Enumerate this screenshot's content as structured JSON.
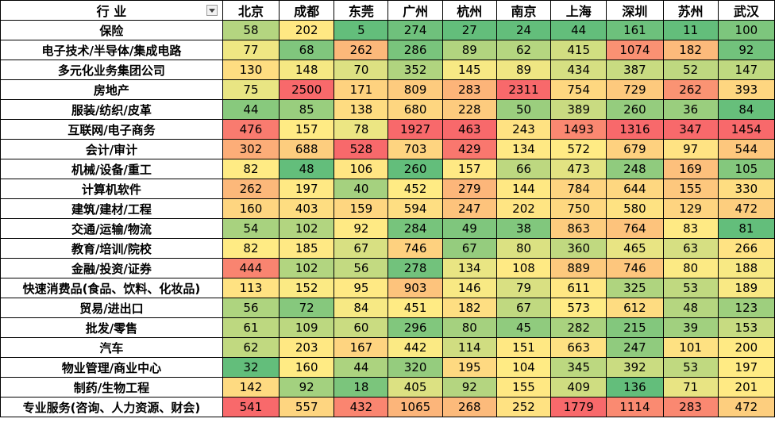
{
  "header": {
    "industry_label": "行  业",
    "filter_icon": "dropdown-arrow-icon",
    "cities": [
      "北京",
      "成都",
      "东莞",
      "广州",
      "杭州",
      "南京",
      "上海",
      "深圳",
      "苏州",
      "武汉"
    ]
  },
  "rows": [
    {
      "industry": "保险",
      "values": [
        58,
        202,
        5,
        274,
        27,
        24,
        44,
        161,
        11,
        100
      ]
    },
    {
      "industry": "电子技术/半导体/集成电路",
      "values": [
        77,
        68,
        262,
        286,
        89,
        62,
        415,
        1074,
        182,
        92
      ]
    },
    {
      "industry": "多元化业务集团公司",
      "values": [
        130,
        148,
        70,
        352,
        145,
        89,
        434,
        387,
        52,
        147
      ]
    },
    {
      "industry": "房地产",
      "values": [
        75,
        2500,
        171,
        809,
        283,
        2311,
        754,
        729,
        262,
        393
      ]
    },
    {
      "industry": "服装/纺织/皮革",
      "values": [
        44,
        85,
        138,
        680,
        228,
        50,
        389,
        260,
        36,
        84
      ]
    },
    {
      "industry": "互联网/电子商务",
      "values": [
        476,
        157,
        78,
        1927,
        463,
        243,
        1493,
        1316,
        347,
        1454
      ]
    },
    {
      "industry": "会计/审计",
      "values": [
        302,
        688,
        528,
        703,
        429,
        134,
        572,
        679,
        97,
        544
      ]
    },
    {
      "industry": "机械/设备/重工",
      "values": [
        82,
        48,
        106,
        260,
        157,
        66,
        473,
        248,
        169,
        105
      ]
    },
    {
      "industry": "计算机软件",
      "values": [
        262,
        197,
        40,
        452,
        279,
        144,
        784,
        644,
        155,
        330
      ]
    },
    {
      "industry": "建筑/建材/工程",
      "values": [
        160,
        403,
        159,
        594,
        247,
        202,
        750,
        580,
        129,
        472
      ]
    },
    {
      "industry": "交通/运输/物流",
      "values": [
        54,
        102,
        92,
        284,
        49,
        38,
        863,
        764,
        83,
        81
      ]
    },
    {
      "industry": "教育/培训/院校",
      "values": [
        82,
        185,
        67,
        746,
        67,
        80,
        360,
        465,
        63,
        266
      ]
    },
    {
      "industry": "金融/投资/证券",
      "values": [
        444,
        102,
        56,
        278,
        134,
        108,
        889,
        746,
        80,
        188
      ]
    },
    {
      "industry": "快速消费品(食品、饮料、化妆品)",
      "values": [
        113,
        152,
        95,
        903,
        146,
        79,
        611,
        325,
        53,
        189
      ]
    },
    {
      "industry": "贸易/进出口",
      "values": [
        56,
        72,
        84,
        451,
        182,
        67,
        573,
        612,
        48,
        123
      ]
    },
    {
      "industry": "批发/零售",
      "values": [
        61,
        109,
        60,
        296,
        80,
        45,
        282,
        215,
        39,
        153
      ]
    },
    {
      "industry": "汽车",
      "values": [
        62,
        203,
        167,
        442,
        114,
        151,
        663,
        247,
        101,
        200
      ]
    },
    {
      "industry": "物业管理/商业中心",
      "values": [
        32,
        160,
        44,
        320,
        195,
        104,
        345,
        392,
        53,
        197
      ]
    },
    {
      "industry": "制药/生物工程",
      "values": [
        142,
        92,
        18,
        405,
        92,
        155,
        409,
        136,
        71,
        201
      ]
    },
    {
      "industry": "专业服务(咨询、人力资源、财会)",
      "values": [
        541,
        557,
        432,
        1065,
        268,
        252,
        1779,
        1114,
        283,
        472
      ]
    }
  ],
  "colors": {
    "scale_low": "#63be7b",
    "scale_mid": "#ffeb84",
    "scale_high": "#f8696b",
    "grid_line": "#000000",
    "header_bg": "#ffffff"
  }
}
